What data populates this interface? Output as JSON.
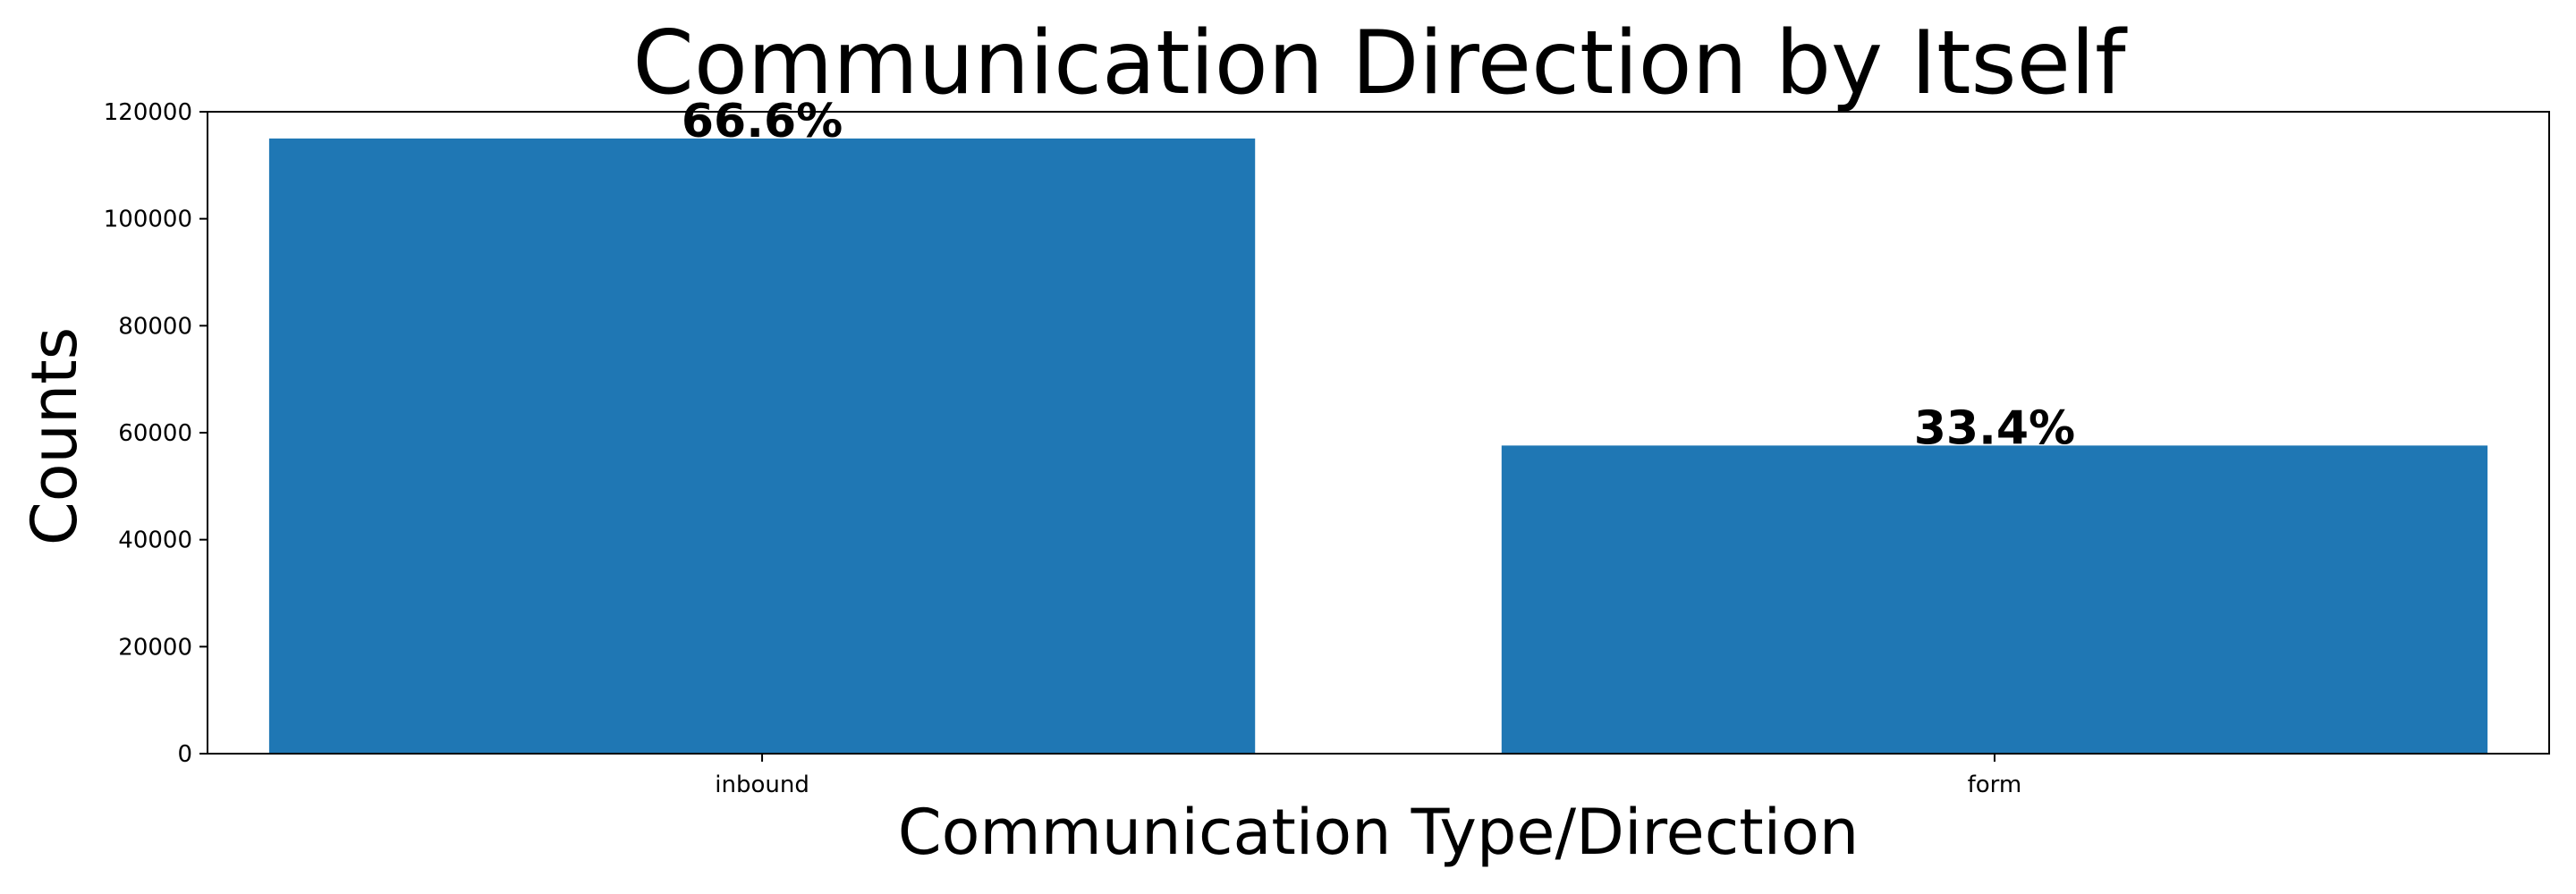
{
  "chart_data": {
    "type": "bar",
    "title": "Communication Direction by Itself",
    "xlabel": "Communication Type/Direction",
    "ylabel": "Counts",
    "categories": [
      "inbound",
      "form"
    ],
    "values": [
      115000,
      57600
    ],
    "data_labels": [
      "66.6%",
      "33.4%"
    ],
    "ylim": [
      0,
      120000
    ],
    "yticks": [
      0,
      20000,
      40000,
      60000,
      80000,
      100000,
      120000
    ],
    "grid": false,
    "legend": "none",
    "bar_color": "#1f77b4"
  }
}
